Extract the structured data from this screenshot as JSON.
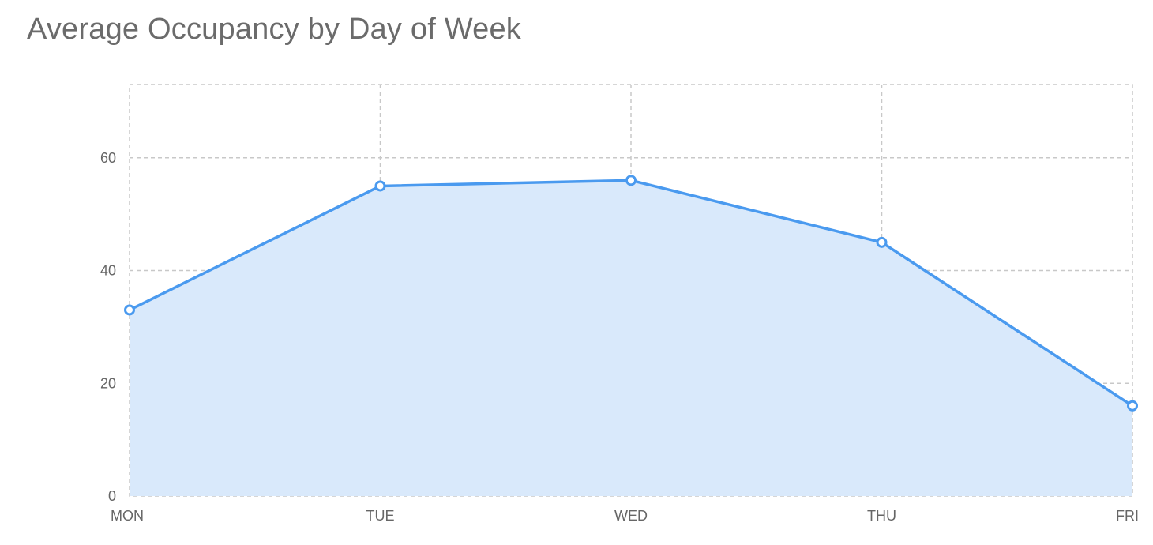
{
  "chart_data": {
    "type": "area",
    "title": "Average Occupancy by Day of Week",
    "xlabel": "",
    "ylabel": "",
    "categories": [
      "MON",
      "TUE",
      "WED",
      "THU",
      "FRI"
    ],
    "series": [
      {
        "values": [
          33,
          55,
          56,
          45,
          16
        ]
      }
    ],
    "ylim": [
      0,
      73
    ],
    "yticks": [
      0,
      20,
      40,
      60
    ],
    "grid": true,
    "legend": "none",
    "colors": {
      "line": "#4a9aef",
      "fill": "#d9e9fb",
      "grid": "#c8c8c8",
      "text": "#666666",
      "title": "#6b6b6b"
    }
  }
}
